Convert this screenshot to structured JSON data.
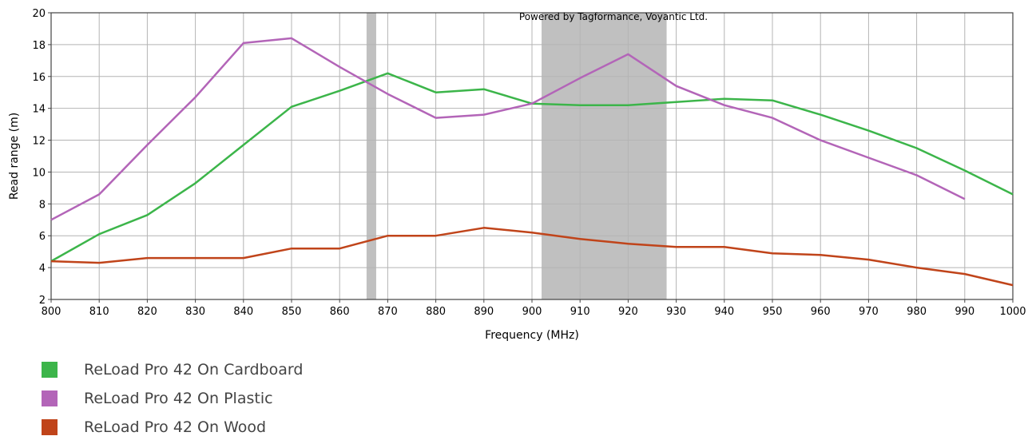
{
  "chart_data": {
    "type": "line",
    "title": "",
    "watermark": "Powered by Tagformance, Voyantic Ltd.",
    "xlabel": "Frequency (MHz)",
    "ylabel": "Read range (m)",
    "xlim": [
      800,
      1000
    ],
    "ylim": [
      2,
      20
    ],
    "xticks": [
      800,
      810,
      820,
      830,
      840,
      850,
      860,
      870,
      880,
      890,
      900,
      910,
      920,
      930,
      940,
      950,
      960,
      970,
      980,
      990,
      1000
    ],
    "yticks": [
      2,
      4,
      6,
      8,
      10,
      12,
      14,
      16,
      18,
      20
    ],
    "grid": true,
    "legend_position": "bottom-left",
    "shaded_bands": [
      [
        865.6,
        867.6
      ],
      [
        902,
        928
      ]
    ],
    "band_color": "#c0c0c0",
    "series": [
      {
        "name": "ReLoad Pro 42 On Cardboard",
        "color": "#3cb54a",
        "x": [
          800,
          810,
          820,
          830,
          840,
          850,
          860,
          870,
          880,
          890,
          900,
          910,
          920,
          930,
          940,
          950,
          960,
          970,
          980,
          990,
          1000
        ],
        "y": [
          4.4,
          6.1,
          7.3,
          9.3,
          11.7,
          14.1,
          15.1,
          16.2,
          15.0,
          15.2,
          14.3,
          14.2,
          14.2,
          14.4,
          14.6,
          14.5,
          13.6,
          12.6,
          11.5,
          10.1,
          8.6
        ]
      },
      {
        "name": "ReLoad Pro 42 On Plastic",
        "color": "#b365b8",
        "x": [
          800,
          810,
          820,
          830,
          840,
          850,
          860,
          870,
          880,
          890,
          900,
          910,
          920,
          930,
          940,
          950,
          960,
          970,
          980,
          990
        ],
        "y": [
          7.0,
          8.6,
          11.7,
          14.7,
          18.1,
          18.4,
          16.6,
          14.9,
          13.4,
          13.6,
          14.3,
          15.9,
          17.4,
          15.4,
          14.2,
          13.4,
          12.0,
          10.9,
          9.8,
          8.3
        ]
      },
      {
        "name": "ReLoad Pro 42 On Wood",
        "color": "#c0441a",
        "x": [
          800,
          810,
          820,
          830,
          840,
          850,
          860,
          870,
          880,
          890,
          900,
          910,
          920,
          930,
          940,
          950,
          960,
          970,
          980,
          990,
          1000
        ],
        "y": [
          4.4,
          4.3,
          4.6,
          4.6,
          4.6,
          5.2,
          5.2,
          6.0,
          6.0,
          6.5,
          6.2,
          5.8,
          5.5,
          5.3,
          5.3,
          4.9,
          4.8,
          4.5,
          4.0,
          3.6,
          2.9
        ]
      }
    ]
  }
}
